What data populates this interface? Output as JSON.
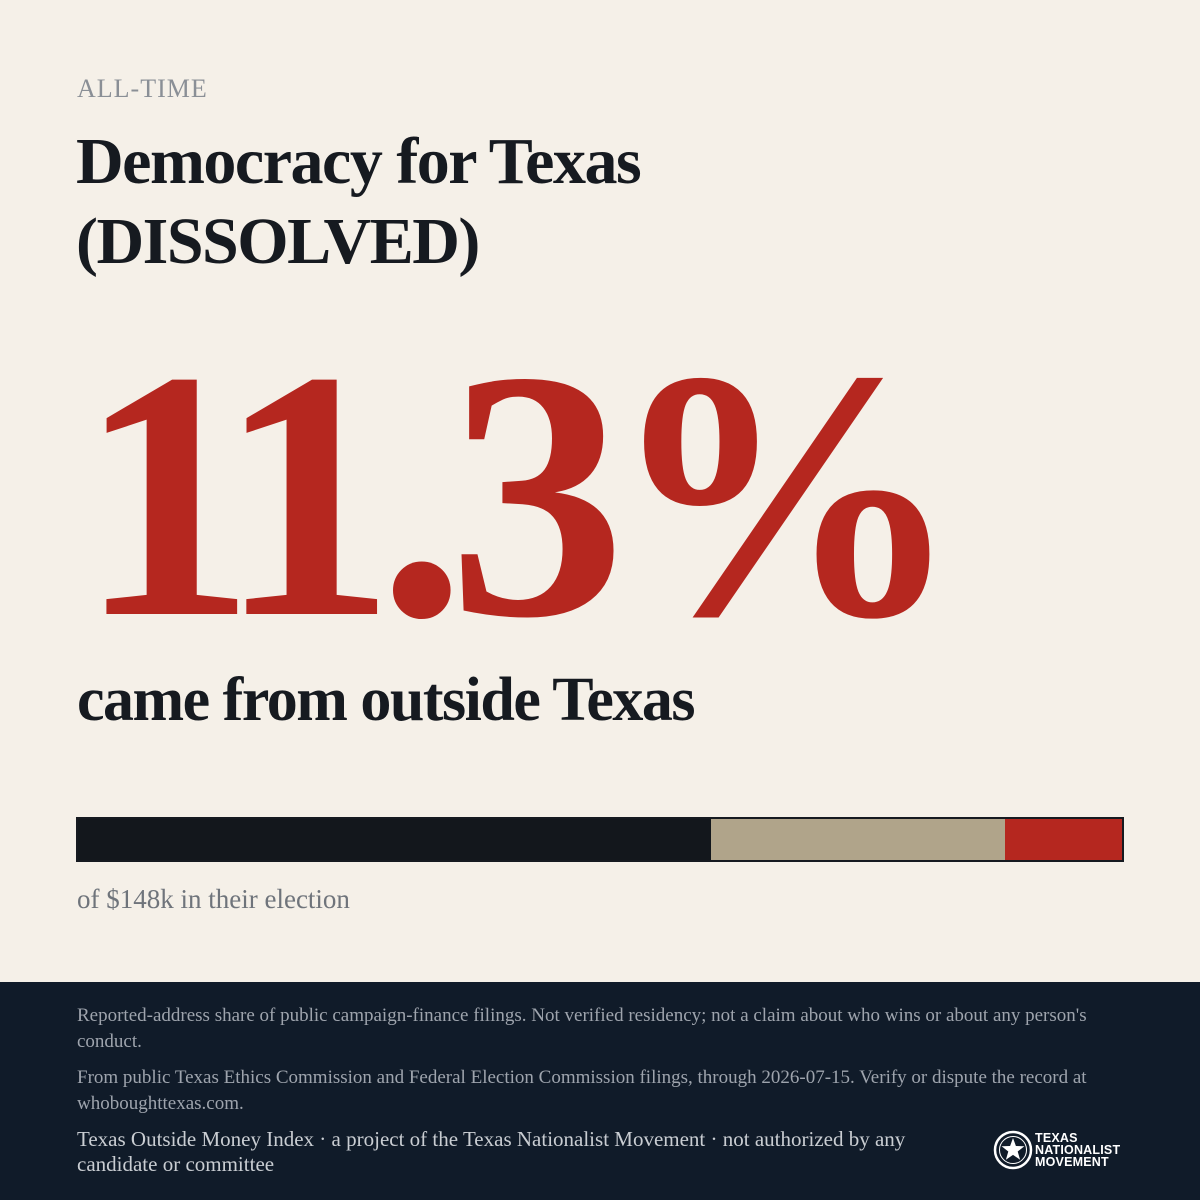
{
  "header": {
    "eyebrow": "ALL-TIME",
    "title_line1": "Democracy for Texas",
    "title_line2": "(DISSOLVED)"
  },
  "stat": {
    "percent_label": "11.3%",
    "caption": "came from outside Texas"
  },
  "bar": {
    "segments": [
      {
        "fraction": 0.6067,
        "color": "#13171c"
      },
      {
        "fraction": 0.2808,
        "color": "#b0a48a"
      },
      {
        "fraction": 0.1125,
        "color": "#b5271f"
      }
    ],
    "note": "of $148k in their election"
  },
  "footer": {
    "note1": "Reported-address share of public campaign-finance filings. Not verified residency; not a claim about who wins or about any person's conduct.",
    "note2": "From public Texas Ethics Commission and Federal Election Commission filings, through 2026-07-15. Verify or dispute the record at whoboughttexas.com.",
    "note3": "Texas Outside Money Index · a project of the Texas Nationalist Movement · not authorized by any candidate or committee",
    "logo": {
      "icon": "star-seal-icon",
      "line1": "TEXAS",
      "line2": "NATIONALIST",
      "line3": "MOVEMENT"
    }
  }
}
